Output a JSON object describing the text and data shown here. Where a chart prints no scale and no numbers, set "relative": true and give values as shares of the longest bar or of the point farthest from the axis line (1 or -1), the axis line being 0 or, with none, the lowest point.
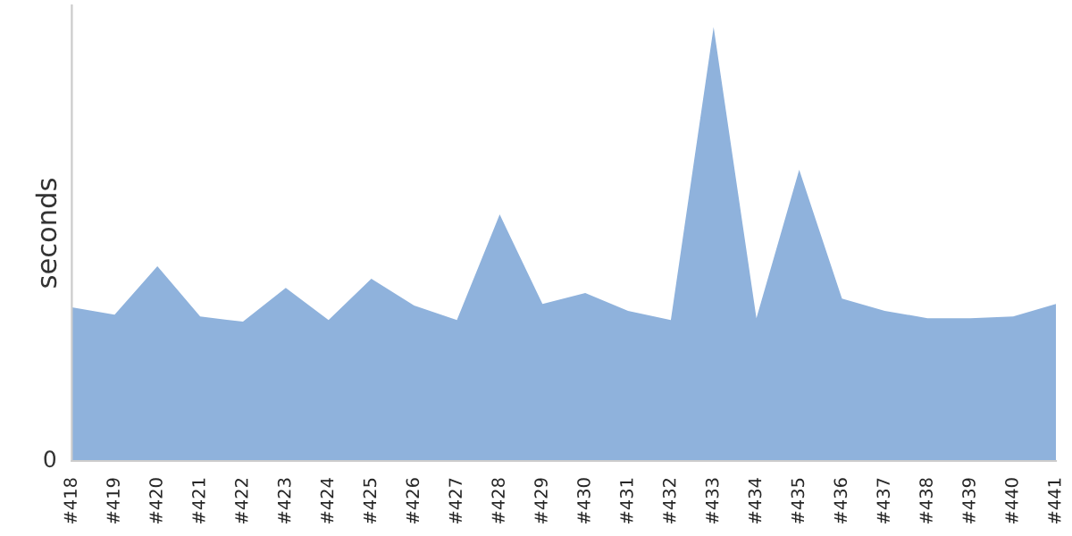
{
  "chart_data": {
    "type": "area",
    "relative": true,
    "ylabel": "seconds",
    "annotations": [
      "0"
    ],
    "categories": [
      "#418",
      "#419",
      "#420",
      "#421",
      "#422",
      "#423",
      "#424",
      "#425",
      "#426",
      "#427",
      "#428",
      "#429",
      "#430",
      "#431",
      "#432",
      "#433",
      "#434",
      "#435",
      "#436",
      "#437",
      "#438",
      "#439",
      "#440",
      "#441"
    ],
    "series": [
      {
        "color": "#8fb2dc",
        "values": [
          0.354,
          0.337,
          0.449,
          0.333,
          0.321,
          0.399,
          0.325,
          0.42,
          0.358,
          0.325,
          0.568,
          0.362,
          0.387,
          0.346,
          0.325,
          1,
          0.329,
          0.671,
          0.374,
          0.346,
          0.329,
          0.329,
          0.333,
          0.362
        ]
      }
    ],
    "grid": false,
    "legend": false
  }
}
